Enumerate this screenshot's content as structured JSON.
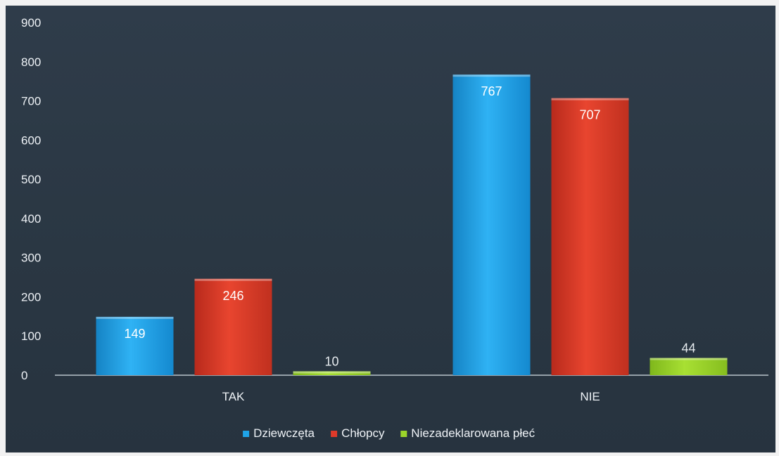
{
  "chart_data": {
    "type": "bar",
    "categories": [
      "TAK",
      "NIE"
    ],
    "series": [
      {
        "name": "Dziewczęta",
        "values": [
          149,
          767
        ],
        "color": "#1fa4e8"
      },
      {
        "name": "Chłopcy",
        "values": [
          246,
          707
        ],
        "color": "#e03a2a"
      },
      {
        "name": "Niezadeklarowana płeć",
        "values": [
          10,
          44
        ],
        "color": "#9bd42a"
      }
    ],
    "ylim": [
      0,
      900
    ],
    "yticks": [
      0,
      100,
      200,
      300,
      400,
      500,
      600,
      700,
      800,
      900
    ],
    "data_labels": true,
    "grid": false,
    "legend_position": "bottom",
    "background": "#2b3844"
  }
}
